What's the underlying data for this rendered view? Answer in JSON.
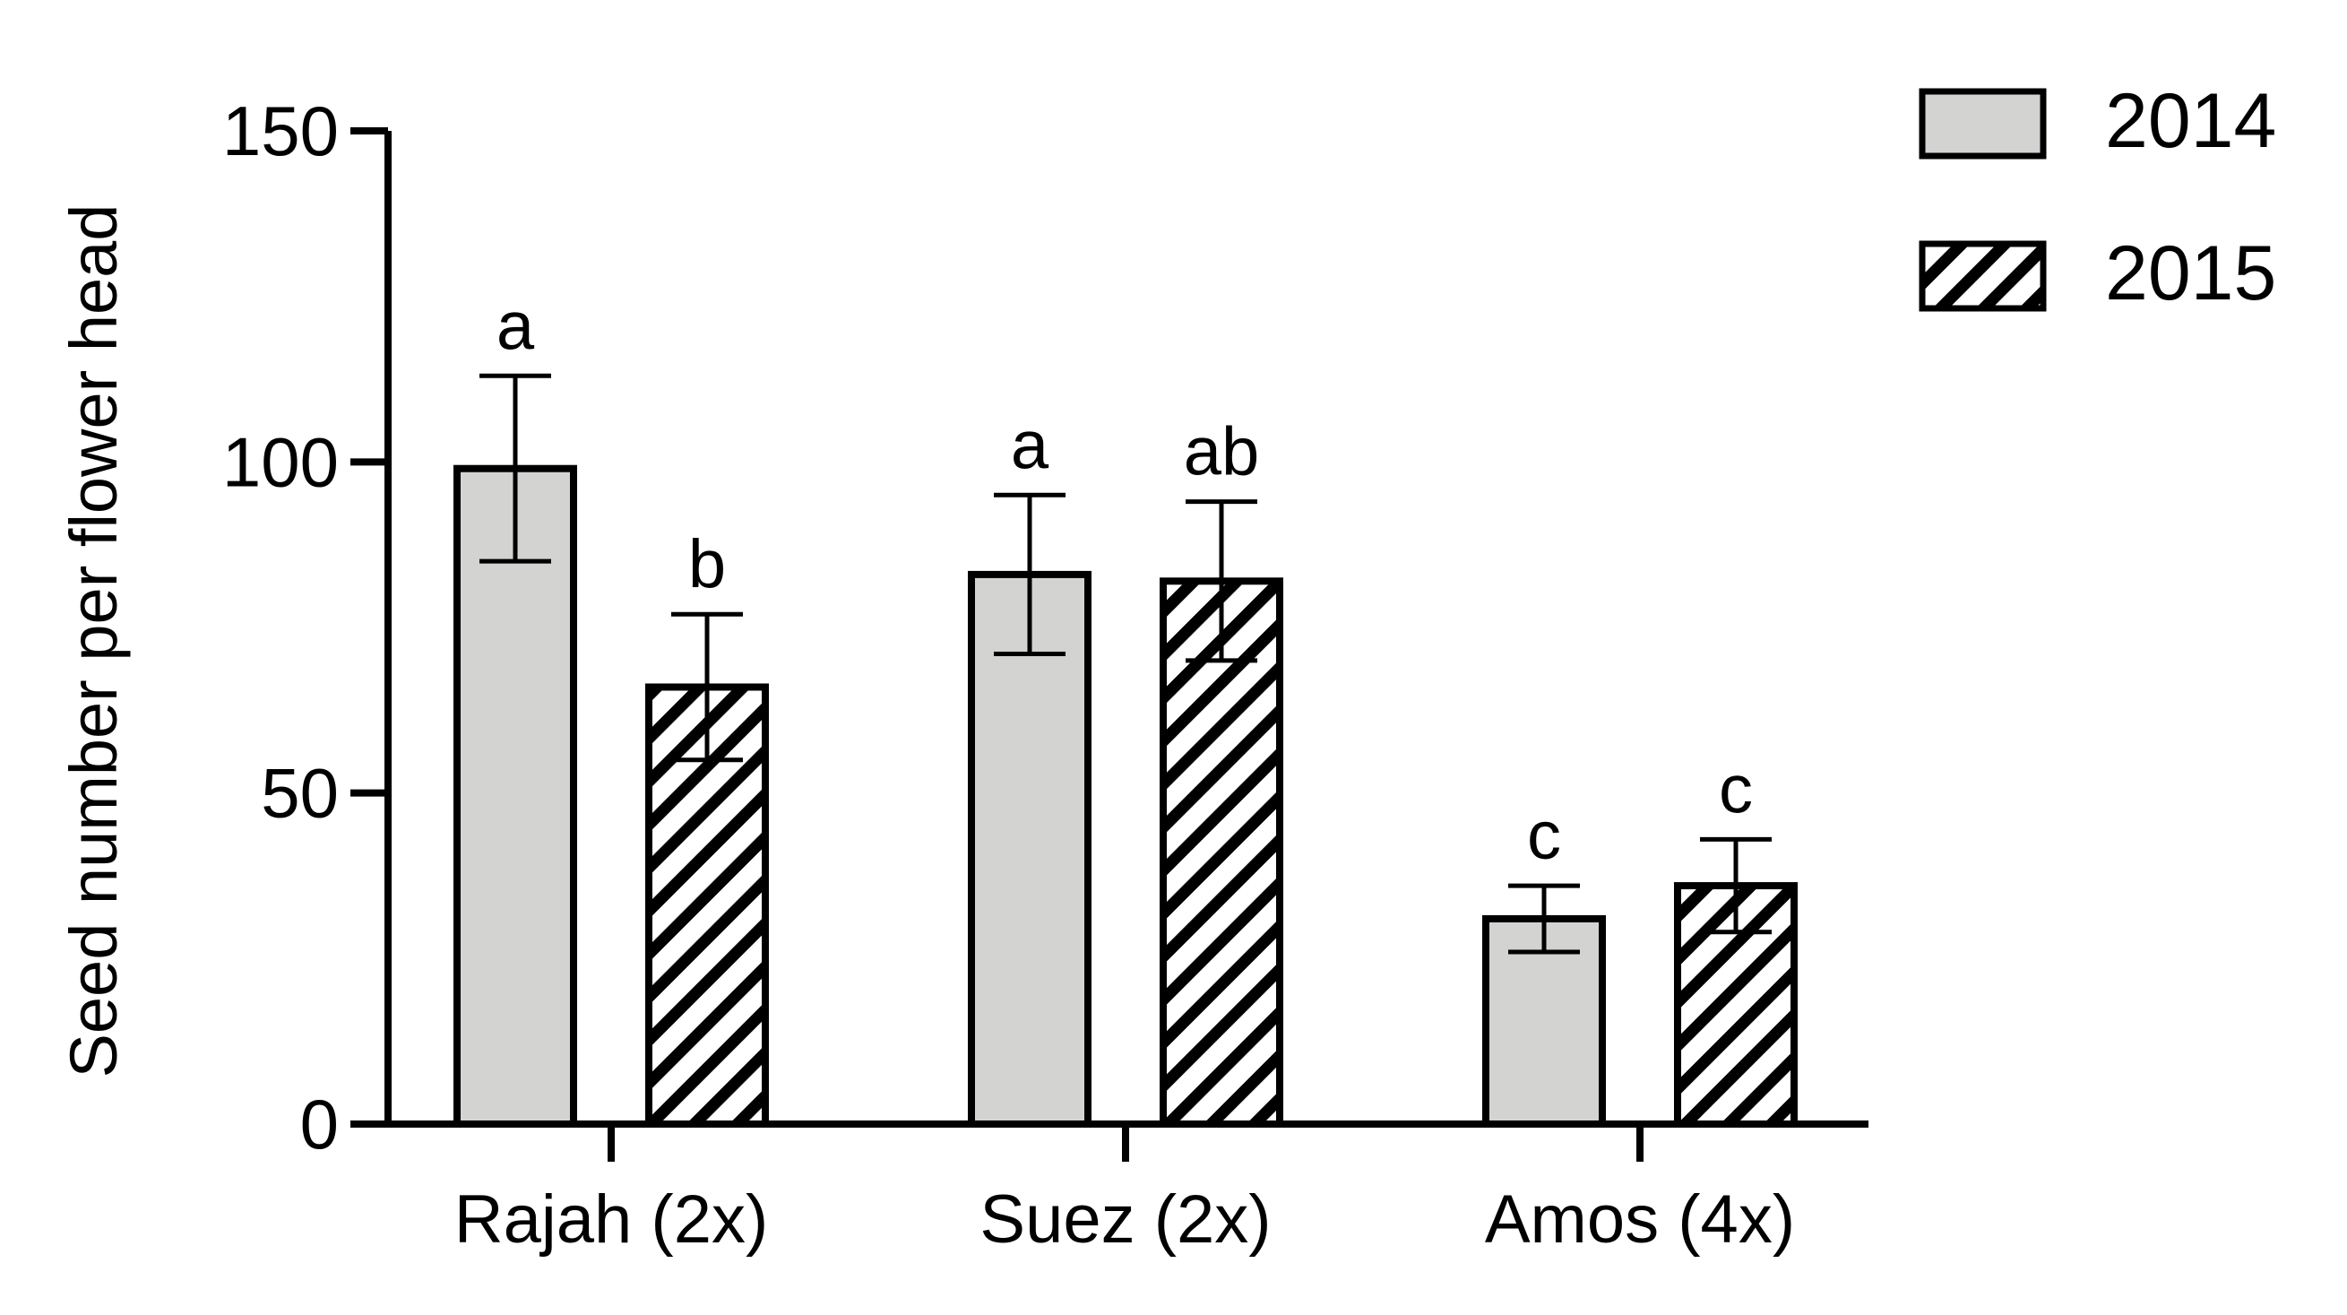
{
  "chart_data": {
    "type": "bar",
    "title": "",
    "ylabel": "Seed number per flower head",
    "xlabel": "",
    "ylim": [
      0,
      150
    ],
    "yticks": [
      0,
      50,
      100,
      150
    ],
    "categories": [
      "Rajah (2x)",
      "Suez (2x)",
      "Amos (4x)"
    ],
    "series": [
      {
        "name": "2014",
        "fill": "solid",
        "values": [
          99,
          83,
          31
        ],
        "errors": [
          14,
          12,
          5
        ],
        "letters": [
          "a",
          "a",
          "c"
        ]
      },
      {
        "name": "2015",
        "fill": "hatched",
        "values": [
          66,
          82,
          36
        ],
        "errors": [
          11,
          12,
          7
        ],
        "letters": [
          "b",
          "ab",
          "c"
        ]
      }
    ],
    "legend_position": "top-right",
    "grid": false,
    "colors": {
      "bar_fill": "#d3d3d1",
      "stroke": "#000000",
      "background": "#ffffff"
    }
  }
}
